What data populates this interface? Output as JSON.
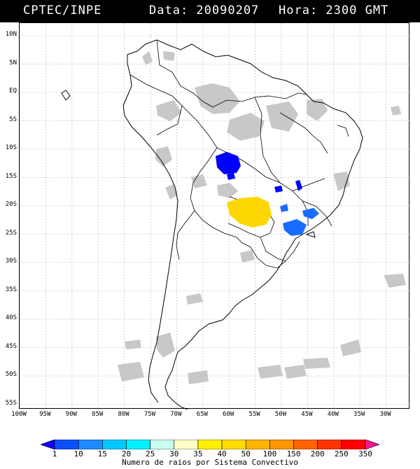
{
  "header": {
    "source": "CPTEC/INPE",
    "date_text": "Data: 20090207",
    "time_text": "Hora: 2300 GMT"
  },
  "map": {
    "lat_labels": [
      "10N",
      "5N",
      "EQ",
      "5S",
      "10S",
      "15S",
      "20S",
      "25S",
      "30S",
      "35S",
      "40S",
      "45S",
      "50S",
      "55S"
    ],
    "lon_labels": [
      "100W",
      "95W",
      "90W",
      "85W",
      "80W",
      "75W",
      "70W",
      "65W",
      "60W",
      "55W",
      "50W",
      "45W",
      "40W",
      "35W",
      "30W"
    ],
    "colors": {
      "grid": "#9a9a9a",
      "coast": "#000000",
      "cloud": "#c8c8c8",
      "flash_blue": "#0000ff",
      "flash_midblue": "#1a6cff",
      "flash_yellow": "#ffd700"
    }
  },
  "legend": {
    "ticks": [
      "1",
      "10",
      "15",
      "20",
      "25",
      "30",
      "35",
      "40",
      "50",
      "100",
      "150",
      "200",
      "250",
      "350"
    ],
    "colors": [
      "#1400ff",
      "#0a50ff",
      "#1e8cff",
      "#00c8ff",
      "#00f0ff",
      "#c8fff0",
      "#ffffc8",
      "#fff000",
      "#ffdc00",
      "#ffb400",
      "#ff9600",
      "#ff6400",
      "#ff3200",
      "#ff0000",
      "#ff1493"
    ],
    "title": "Numero de raios por Sistema Convectivo"
  }
}
